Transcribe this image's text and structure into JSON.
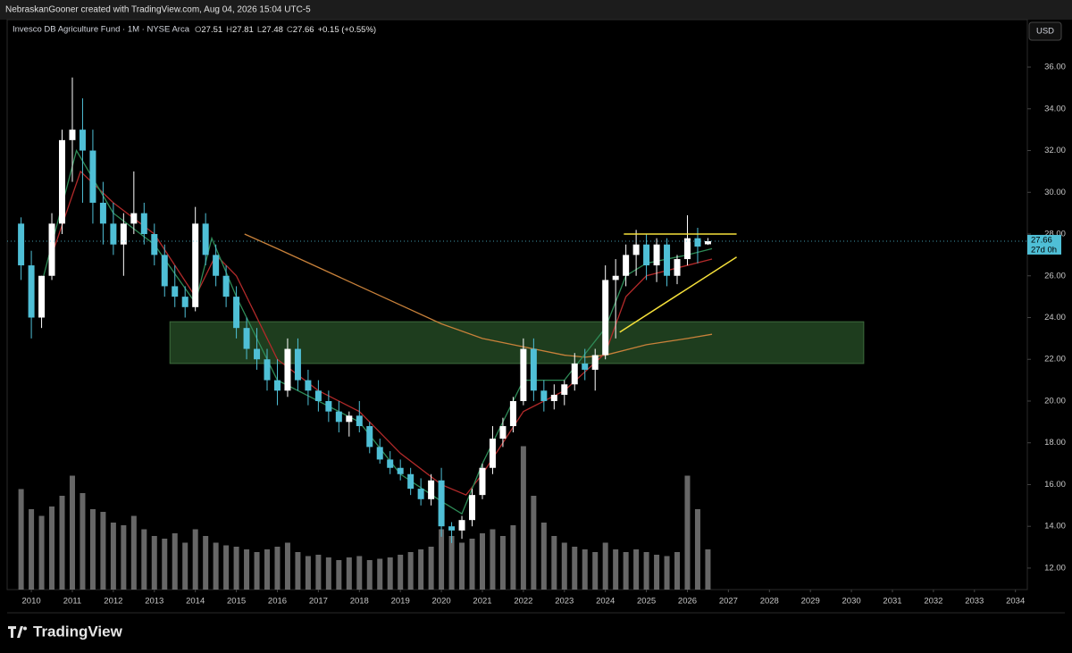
{
  "header": "NebraskanGooner created with TradingView.com, Aug 04, 2026 15:04 UTC-5",
  "brand": "TradingView",
  "chart_data": {
    "type": "candlestick",
    "title": "Invesco DB Agriculture Fund · 1M · NYSE Arca",
    "legend": [
      {
        "label": "O",
        "value": "27.51"
      },
      {
        "label": "H",
        "value": "27.81"
      },
      {
        "label": "L",
        "value": "27.48"
      },
      {
        "label": "C",
        "value": "27.66"
      }
    ],
    "change": "+0.15 (+0.55%)",
    "currency": "USD",
    "last_price": 27.66,
    "countdown": "27d 0h",
    "x": [
      2009.75,
      2010,
      2010.25,
      2010.5,
      2010.75,
      2011,
      2011.25,
      2011.5,
      2011.75,
      2012,
      2012.25,
      2012.5,
      2012.75,
      2013,
      2013.25,
      2013.5,
      2013.75,
      2014,
      2014.25,
      2014.5,
      2014.75,
      2015,
      2015.25,
      2015.5,
      2015.75,
      2016,
      2016.25,
      2016.5,
      2016.75,
      2017,
      2017.25,
      2017.5,
      2017.75,
      2018,
      2018.25,
      2018.5,
      2018.75,
      2019,
      2019.25,
      2019.5,
      2019.75,
      2020,
      2020.25,
      2020.5,
      2020.75,
      2021,
      2021.25,
      2021.5,
      2021.75,
      2022,
      2022.25,
      2022.5,
      2022.75,
      2023,
      2023.25,
      2023.5,
      2023.75,
      2024,
      2024.25,
      2024.5,
      2024.75,
      2025,
      2025.25,
      2025.5,
      2025.75,
      2026,
      2026.25,
      2026.5
    ],
    "open": [
      28.5,
      26.5,
      24.0,
      26.0,
      28.5,
      32.5,
      33.0,
      32.0,
      29.5,
      28.5,
      27.5,
      28.5,
      29.0,
      28.0,
      27.0,
      25.5,
      25.0,
      24.5,
      28.5,
      27.0,
      26.0,
      25.0,
      23.5,
      22.5,
      22.0,
      21.0,
      20.5,
      22.5,
      21.0,
      20.5,
      20.0,
      19.5,
      19.0,
      19.3,
      18.8,
      17.8,
      17.2,
      16.8,
      16.5,
      15.8,
      15.3,
      16.2,
      14.0,
      13.8,
      14.3,
      15.5,
      16.8,
      18.2,
      18.8,
      20.0,
      22.5,
      20.5,
      20.0,
      20.3,
      20.8,
      21.8,
      21.5,
      22.2,
      25.8,
      26.0,
      27.0,
      27.5,
      26.5,
      27.5,
      26.0,
      26.8,
      27.8,
      27.51
    ],
    "high": [
      28.8,
      27.2,
      26.0,
      29.0,
      33.0,
      35.5,
      34.5,
      33.0,
      30.5,
      29.5,
      29.0,
      31.0,
      29.5,
      28.5,
      27.5,
      26.5,
      25.5,
      29.3,
      29.0,
      27.5,
      26.5,
      25.5,
      24.0,
      23.5,
      22.5,
      22.0,
      23.0,
      23.0,
      21.5,
      21.0,
      20.5,
      20.0,
      19.5,
      20.0,
      19.0,
      18.2,
      17.6,
      17.2,
      16.8,
      16.3,
      16.5,
      16.8,
      14.2,
      14.5,
      15.8,
      17.0,
      18.8,
      19.2,
      20.2,
      23.0,
      23.0,
      21.0,
      20.8,
      21.0,
      22.3,
      22.5,
      22.5,
      26.5,
      26.8,
      27.5,
      28.2,
      28.0,
      27.8,
      27.8,
      27.0,
      28.9,
      28.3,
      27.81
    ],
    "low": [
      25.8,
      23.0,
      23.5,
      25.8,
      28.0,
      30.5,
      29.5,
      28.5,
      27.5,
      27.0,
      26.0,
      28.0,
      27.5,
      26.5,
      25.0,
      24.5,
      24.0,
      24.3,
      26.5,
      25.5,
      24.5,
      23.0,
      22.0,
      21.5,
      20.5,
      19.8,
      20.2,
      20.5,
      19.8,
      19.5,
      19.0,
      18.5,
      18.3,
      18.5,
      17.5,
      17.0,
      16.5,
      16.2,
      15.5,
      15.0,
      15.0,
      13.5,
      13.2,
      13.4,
      14.0,
      15.3,
      16.5,
      17.8,
      18.5,
      19.8,
      20.0,
      19.5,
      19.6,
      19.8,
      20.5,
      21.0,
      20.5,
      22.0,
      23.0,
      25.5,
      26.0,
      25.8,
      25.7,
      25.5,
      25.6,
      26.5,
      26.6,
      27.48
    ],
    "close": [
      26.5,
      24.0,
      26.0,
      28.5,
      32.5,
      33.0,
      32.0,
      29.5,
      28.5,
      27.5,
      28.5,
      29.0,
      28.0,
      27.0,
      25.5,
      25.0,
      24.5,
      28.5,
      27.0,
      26.0,
      25.0,
      23.5,
      22.5,
      22.0,
      21.0,
      20.5,
      22.5,
      21.0,
      20.5,
      20.0,
      19.5,
      19.0,
      19.3,
      18.8,
      17.8,
      17.2,
      16.8,
      16.5,
      15.8,
      15.3,
      16.2,
      14.0,
      13.8,
      14.3,
      15.5,
      16.8,
      18.2,
      18.8,
      20.0,
      22.5,
      20.5,
      20.0,
      20.3,
      20.8,
      21.8,
      21.5,
      22.2,
      25.8,
      26.0,
      27.0,
      27.5,
      26.5,
      27.5,
      26.0,
      26.8,
      27.8,
      27.4,
      27.66
    ],
    "volume": [
      75,
      60,
      55,
      62,
      70,
      85,
      72,
      60,
      58,
      50,
      48,
      55,
      45,
      40,
      38,
      42,
      35,
      45,
      40,
      35,
      33,
      32,
      30,
      28,
      30,
      32,
      35,
      28,
      25,
      26,
      24,
      22,
      24,
      25,
      22,
      23,
      24,
      26,
      28,
      30,
      32,
      45,
      40,
      35,
      38,
      42,
      45,
      40,
      48,
      107,
      70,
      50,
      40,
      35,
      32,
      30,
      28,
      35,
      30,
      28,
      30,
      28,
      26,
      25,
      28,
      85,
      60,
      30
    ],
    "up_color": "#ffffff",
    "down_color": "#4fbfd6",
    "volume_color": "#8a8a8a",
    "moving_averages": [
      {
        "color": "#c8813a",
        "x": [
          2015.2,
          2016,
          2017,
          2018,
          2019,
          2020,
          2021,
          2022,
          2023,
          2023.5,
          2024,
          2025,
          2026,
          2026.6
        ],
        "values": [
          28.0,
          27.3,
          26.4,
          25.5,
          24.6,
          23.7,
          23.0,
          22.6,
          22.2,
          22.1,
          22.2,
          22.7,
          23.0,
          23.2
        ]
      },
      {
        "color": "#b22a2a",
        "x": [
          2010.5,
          2011.2,
          2012,
          2013,
          2014,
          2014.5,
          2015,
          2016,
          2017,
          2018,
          2019,
          2020,
          2020.6,
          2021,
          2022,
          2023,
          2024,
          2024.5,
          2025,
          2026,
          2026.6
        ],
        "values": [
          27,
          31,
          29.5,
          28,
          25,
          27,
          26,
          22,
          20.5,
          19.5,
          17.5,
          16,
          15.5,
          16.5,
          19.5,
          20.5,
          22.3,
          25,
          26,
          26.5,
          26.8
        ]
      },
      {
        "color": "#2e8b57",
        "x": [
          2010.3,
          2011.1,
          2012,
          2013,
          2014,
          2014.4,
          2015,
          2016,
          2017,
          2018,
          2019,
          2020,
          2020.5,
          2021,
          2022,
          2023,
          2024,
          2024.5,
          2025,
          2026,
          2026.6
        ],
        "values": [
          26,
          32,
          29,
          27.5,
          24.7,
          27.8,
          25,
          21,
          20,
          19,
          16.5,
          15.2,
          14.6,
          17,
          21,
          21,
          23.5,
          26,
          26.6,
          27,
          27.3
        ]
      }
    ],
    "annotations": {
      "zone": {
        "color": "#1e3d1e",
        "x": [
          2013.38,
          2030.3
        ],
        "y": [
          21.8,
          23.8
        ]
      },
      "lines": [
        {
          "color": "#f5e03a",
          "x": [
            2024.45,
            2027.2
          ],
          "y": [
            28.0,
            28.0
          ]
        },
        {
          "color": "#f5e03a",
          "x": [
            2024.35,
            2027.2
          ],
          "y": [
            23.3,
            26.9
          ]
        }
      ]
    },
    "xlim": [
      2009.41,
      2034.29
    ],
    "ylim": [
      10.97,
      38.27
    ],
    "xticks": [
      2010,
      2011,
      2012,
      2013,
      2014,
      2015,
      2016,
      2017,
      2018,
      2019,
      2020,
      2021,
      2022,
      2023,
      2024,
      2025,
      2026,
      2027,
      2028,
      2029,
      2030,
      2031,
      2032,
      2033,
      2034
    ],
    "yticks": [
      {
        "value": 12,
        "label": "12.00"
      },
      {
        "value": 14,
        "label": "14.00"
      },
      {
        "value": 16,
        "label": "16.00"
      },
      {
        "value": 18,
        "label": "18.00"
      },
      {
        "value": 20,
        "label": "20.00"
      },
      {
        "value": 22,
        "label": "22.00"
      },
      {
        "value": 24,
        "label": "24.00"
      },
      {
        "value": 26,
        "label": "26.00"
      },
      {
        "value": 28,
        "label": "28.00"
      },
      {
        "value": 30,
        "label": "30.00"
      },
      {
        "value": 32,
        "label": "32.00"
      },
      {
        "value": 34,
        "label": "34.00"
      },
      {
        "value": 36,
        "label": "36.00"
      }
    ],
    "grid": false
  }
}
